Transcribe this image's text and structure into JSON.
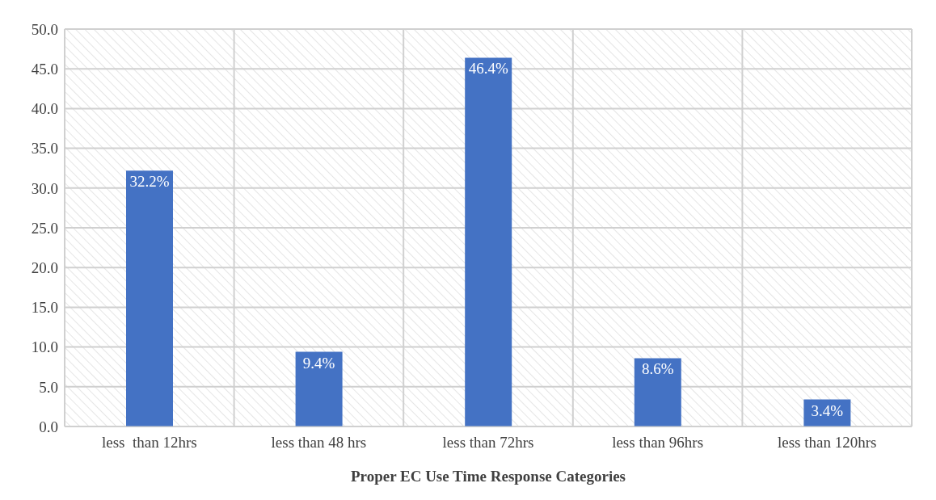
{
  "chart_data": {
    "type": "bar",
    "xlabel": "Proper EC Use Time Response Categories",
    "categories": [
      "less  than 12hrs",
      "less than 48 hrs",
      "less than 72hrs",
      "less than 96hrs",
      "less than 120hrs"
    ],
    "values": [
      32.2,
      9.4,
      46.4,
      8.6,
      3.4
    ],
    "value_labels": [
      "32.2%",
      "9.4%",
      "46.4%",
      "8.6%",
      "3.4%"
    ],
    "color": "#4472c4",
    "ylim": [
      0,
      50
    ],
    "yticks": [
      {
        "value": 0,
        "label": "0.0"
      },
      {
        "value": 5,
        "label": "5.0"
      },
      {
        "value": 10,
        "label": "10.0"
      },
      {
        "value": 15,
        "label": "15.0"
      },
      {
        "value": 20,
        "label": "20.0"
      },
      {
        "value": 25,
        "label": "25.0"
      },
      {
        "value": 30,
        "label": "30.0"
      },
      {
        "value": 35,
        "label": "35.0"
      },
      {
        "value": 40,
        "label": "40.0"
      },
      {
        "value": 45,
        "label": "45.0"
      },
      {
        "value": 50,
        "label": "50.0"
      }
    ],
    "grid": true
  }
}
